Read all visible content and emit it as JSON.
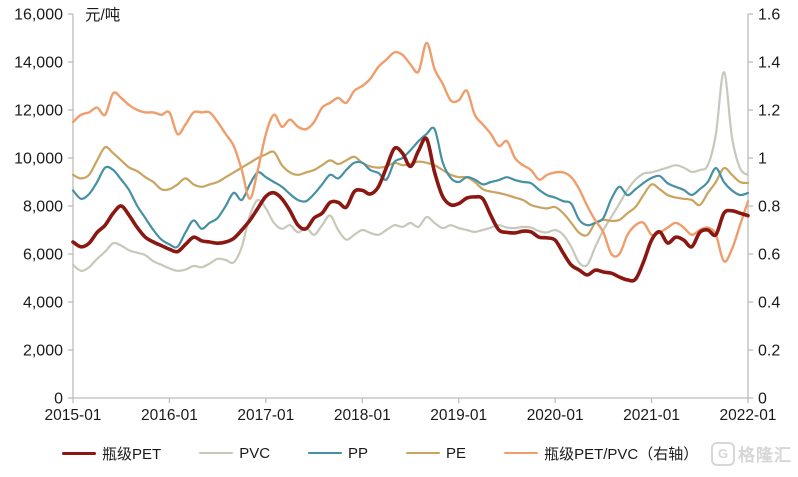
{
  "watermark": {
    "logo_glyph": "G",
    "text": "格隆汇"
  },
  "chart_data": {
    "type": "line",
    "title": "",
    "x_label": "",
    "left_axis": {
      "unit": "元/吨",
      "min": 0,
      "max": 16000,
      "tick_labels": [
        "0",
        "2,000",
        "4,000",
        "6,000",
        "8,000",
        "10,000",
        "12,000",
        "14,000",
        "16,000"
      ]
    },
    "right_axis": {
      "min": 0,
      "max": 1.6,
      "tick_labels": [
        "0",
        "0.2",
        "0.4",
        "0.6",
        "0.8",
        "1",
        "1.2",
        "1.4",
        "1.6"
      ]
    },
    "x_tick_labels": [
      "2015-01",
      "2016-01",
      "2017-01",
      "2018-01",
      "2019-01",
      "2020-01",
      "2021-01",
      "2022-01"
    ],
    "x_tick_month_index": [
      0,
      12,
      24,
      36,
      48,
      60,
      72,
      84
    ],
    "months_start": "2015-01",
    "months_end": "2022-01",
    "grid": false,
    "legend_position": "bottom",
    "series": [
      {
        "name": "PVC",
        "axis": "left",
        "color": "#c8c8ba",
        "width": 2.2,
        "values": [
          5550,
          5300,
          5450,
          5800,
          6100,
          6450,
          6350,
          6150,
          6050,
          5950,
          5700,
          5550,
          5400,
          5300,
          5350,
          5500,
          5450,
          5600,
          5800,
          5750,
          5650,
          6300,
          7600,
          8250,
          7900,
          7300,
          7050,
          7200,
          6900,
          7100,
          6800,
          7200,
          7600,
          7000,
          6600,
          6800,
          7000,
          6880,
          6800,
          7000,
          7200,
          7130,
          7290,
          7130,
          7540,
          7290,
          7080,
          7200,
          7080,
          7000,
          6920,
          7000,
          7100,
          7200,
          7100,
          7080,
          7130,
          7100,
          6950,
          6900,
          7000,
          6800,
          6300,
          5630,
          5550,
          6300,
          7000,
          7550,
          8100,
          8670,
          9100,
          9350,
          9400,
          9500,
          9600,
          9700,
          9600,
          9420,
          9500,
          9700,
          11000,
          13580,
          10880,
          9580,
          9290
        ]
      },
      {
        "name": "PE",
        "axis": "left",
        "color": "#c8a45e",
        "width": 2.2,
        "values": [
          9300,
          9150,
          9300,
          9900,
          10450,
          10200,
          9900,
          9600,
          9450,
          9200,
          9000,
          8700,
          8700,
          8900,
          9150,
          8900,
          8800,
          8900,
          9000,
          9200,
          9400,
          9600,
          9800,
          10000,
          10150,
          10250,
          9700,
          9400,
          9300,
          9400,
          9500,
          9700,
          9900,
          9750,
          9900,
          10050,
          9800,
          9650,
          9600,
          9650,
          9800,
          9700,
          9750,
          9850,
          9800,
          9700,
          9500,
          9300,
          9200,
          9200,
          9000,
          8700,
          8600,
          8540,
          8460,
          8350,
          8250,
          8040,
          7950,
          7900,
          7960,
          7700,
          7300,
          6880,
          6790,
          7290,
          7420,
          7380,
          7420,
          7700,
          7960,
          8460,
          8900,
          8700,
          8460,
          8350,
          8300,
          8250,
          8040,
          8540,
          9000,
          9580,
          9300,
          9000,
          8960
        ]
      },
      {
        "name": "PP",
        "axis": "left",
        "color": "#4690a4",
        "width": 2.2,
        "values": [
          8650,
          8300,
          8500,
          9000,
          9600,
          9500,
          9100,
          8650,
          8000,
          7500,
          7000,
          6600,
          6400,
          6300,
          6900,
          7400,
          7050,
          7300,
          7500,
          8000,
          8550,
          8250,
          8900,
          9400,
          9200,
          9000,
          8800,
          8500,
          8250,
          8200,
          8500,
          8900,
          9300,
          9150,
          9500,
          9800,
          9800,
          9500,
          9380,
          9100,
          9830,
          10000,
          10330,
          10700,
          11000,
          11200,
          9830,
          9170,
          9000,
          9200,
          9100,
          8900,
          9000,
          9080,
          9200,
          9080,
          9000,
          8950,
          8670,
          8450,
          8350,
          8200,
          8100,
          7420,
          7200,
          7300,
          7500,
          8300,
          8800,
          8450,
          8700,
          8960,
          9170,
          9250,
          8950,
          8800,
          8670,
          8460,
          8700,
          9000,
          9580,
          9000,
          8650,
          8460,
          8540
        ]
      },
      {
        "name": "瓶级PET/PVC（右轴）",
        "axis": "right",
        "color": "#f09d6c",
        "width": 2.4,
        "values": [
          1.15,
          1.18,
          1.19,
          1.21,
          1.18,
          1.27,
          1.25,
          1.22,
          1.2,
          1.19,
          1.19,
          1.18,
          1.19,
          1.1,
          1.14,
          1.19,
          1.19,
          1.19,
          1.15,
          1.1,
          1.05,
          0.95,
          0.83,
          0.95,
          1.1,
          1.18,
          1.13,
          1.16,
          1.13,
          1.12,
          1.15,
          1.21,
          1.23,
          1.25,
          1.23,
          1.28,
          1.3,
          1.33,
          1.38,
          1.41,
          1.44,
          1.43,
          1.39,
          1.36,
          1.48,
          1.37,
          1.31,
          1.24,
          1.24,
          1.28,
          1.18,
          1.14,
          1.1,
          1.05,
          1.07,
          1.0,
          0.97,
          0.95,
          0.91,
          0.93,
          0.94,
          0.94,
          0.92,
          0.87,
          0.8,
          0.74,
          0.69,
          0.6,
          0.6,
          0.68,
          0.72,
          0.73,
          0.68,
          0.69,
          0.71,
          0.73,
          0.71,
          0.68,
          0.7,
          0.71,
          0.68,
          0.57,
          0.62,
          0.72,
          0.82
        ]
      },
      {
        "name": "瓶级PET",
        "axis": "left",
        "color": "#8a1712",
        "width": 3.6,
        "values": [
          6500,
          6300,
          6450,
          6900,
          7200,
          7700,
          8000,
          7600,
          7100,
          6700,
          6500,
          6350,
          6200,
          6100,
          6400,
          6700,
          6550,
          6500,
          6450,
          6500,
          6650,
          7000,
          7400,
          7900,
          8400,
          8550,
          8300,
          7800,
          7200,
          7050,
          7500,
          7700,
          8150,
          8150,
          7950,
          8600,
          8650,
          8500,
          8800,
          9600,
          10400,
          10200,
          9650,
          10300,
          10800,
          9400,
          8400,
          8050,
          8100,
          8330,
          8380,
          8300,
          7600,
          7000,
          6900,
          6880,
          6950,
          6920,
          6700,
          6670,
          6580,
          6040,
          5540,
          5330,
          5130,
          5330,
          5250,
          5200,
          5040,
          4920,
          4950,
          5670,
          6580,
          6920,
          6460,
          6700,
          6580,
          6300,
          6900,
          7000,
          6800,
          7700,
          7800,
          7700,
          7600
        ]
      }
    ],
    "legend_order": [
      "瓶级PET",
      "PVC",
      "PP",
      "PE",
      "瓶级PET/PVC（右轴）"
    ]
  }
}
